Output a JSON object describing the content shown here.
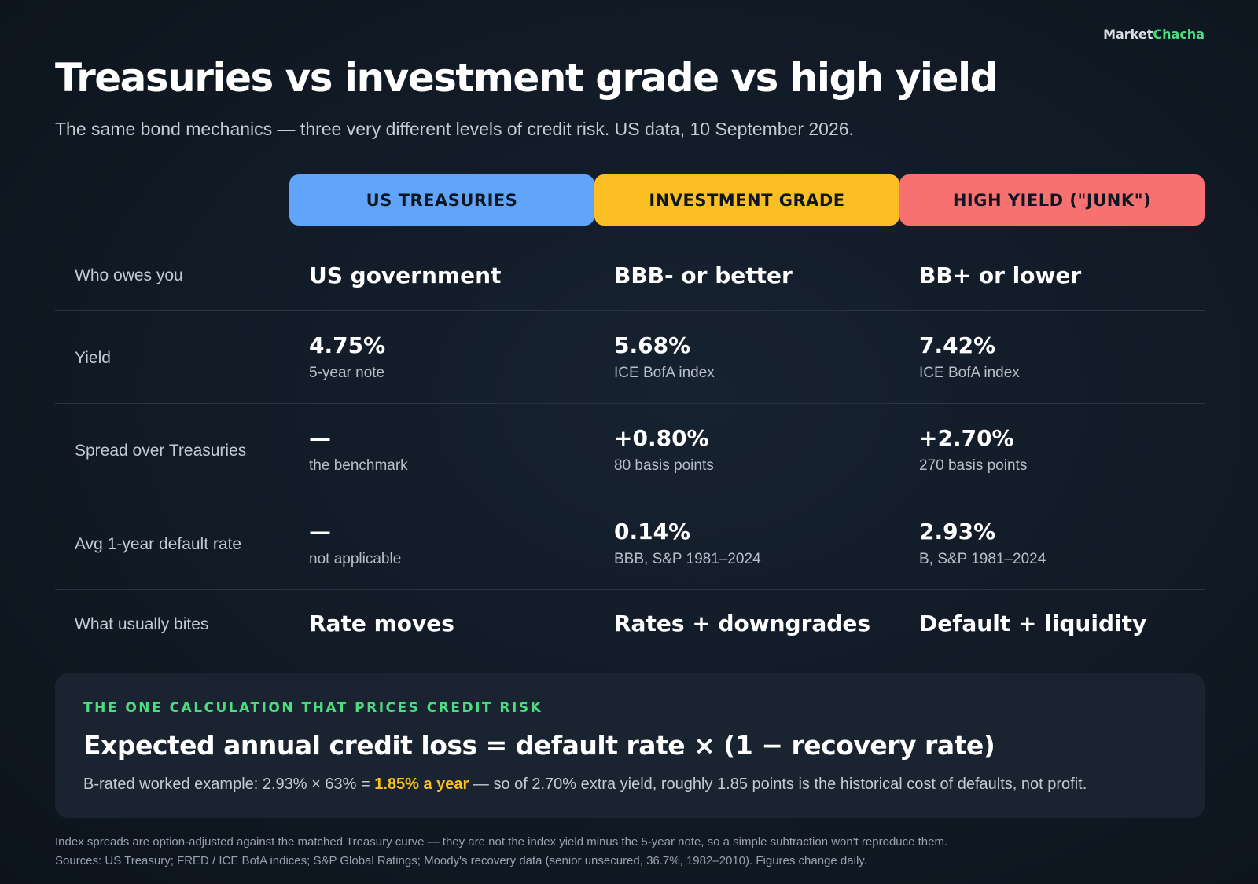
{
  "brand": {
    "part1": "Market",
    "part2": "Chacha"
  },
  "title": "Treasuries vs investment grade vs high yield",
  "subtitle": "The same bond mechanics — three very different levels of credit risk. US data, 10 September 2026.",
  "columns": [
    {
      "label": "US TREASURIES",
      "color": "#60a5fa"
    },
    {
      "label": "INVESTMENT GRADE",
      "color": "#fbbf24"
    },
    {
      "label": "HIGH YIELD (\"JUNK\")",
      "color": "#f87171"
    }
  ],
  "rows": {
    "who": {
      "label": "Who owes you",
      "values": [
        "US government",
        "BBB- or better",
        "BB+ or lower"
      ]
    },
    "yield": {
      "label": "Yield",
      "values": [
        "4.75%",
        "5.68%",
        "7.42%"
      ],
      "notes": [
        "5-year note",
        "ICE BofA index",
        "ICE BofA index"
      ]
    },
    "spread": {
      "label": "Spread over Treasuries",
      "values": [
        "—",
        "+0.80%",
        "+2.70%"
      ],
      "notes": [
        "the benchmark",
        "80 basis points",
        "270 basis points"
      ]
    },
    "default": {
      "label": "Avg 1-year default rate",
      "values": [
        "—",
        "0.14%",
        "2.93%"
      ],
      "notes": [
        "not applicable",
        "BBB, S&P 1981–2024",
        "B, S&P 1981–2024"
      ]
    },
    "bites": {
      "label": "What usually bites",
      "values": [
        "Rate moves",
        "Rates + downgrades",
        "Default + liquidity"
      ]
    }
  },
  "callout": {
    "eyebrow": "THE ONE CALCULATION THAT PRICES CREDIT RISK",
    "formula": "Expected annual credit loss = default rate × (1 − recovery rate)",
    "example_prefix": "B-rated worked example: 2.93% × 63% = ",
    "example_highlight": "1.85% a year",
    "example_suffix": " — so of 2.70% extra yield, roughly 1.85 points is the historical cost of defaults, not profit."
  },
  "footnotes": [
    "Index spreads are option-adjusted against the matched Treasury curve — they are not the index yield minus the 5-year note, so a simple subtraction won't reproduce them.",
    "Sources: US Treasury; FRED / ICE BofA indices; S&P Global Ratings; Moody's recovery data (senior unsecured, 36.7%, 1982–2010). Figures change daily."
  ]
}
